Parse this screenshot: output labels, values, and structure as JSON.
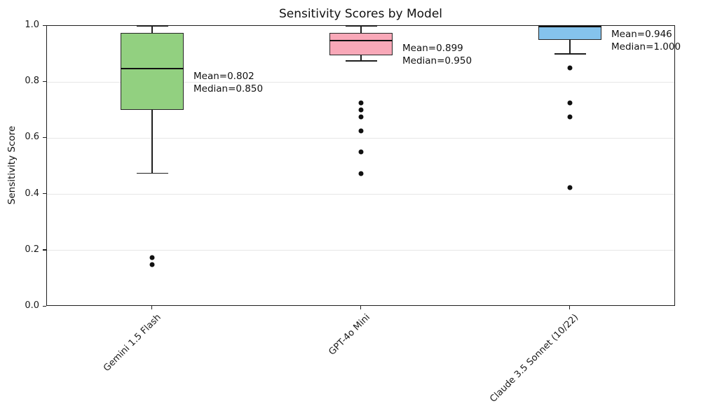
{
  "chart_data": {
    "type": "boxplot",
    "title": "Sensitivity Scores by Model",
    "xlabel": "",
    "ylabel": "Sensitivity Score",
    "ylim": [
      0.0,
      1.0
    ],
    "yticks": [
      0.0,
      0.2,
      0.4,
      0.6,
      0.8,
      1.0
    ],
    "ytick_labels": [
      "0.0",
      "0.2",
      "0.4",
      "0.6",
      "0.8",
      "1.0"
    ],
    "grid": "horizontal-only",
    "legend": "none",
    "categories": [
      "Gemini 1.5 Flash",
      "GPT-4o Mini",
      "Claude 3.5 Sonnet (10/22)"
    ],
    "series": [
      {
        "model": "Gemini 1.5 Flash",
        "box_color": "#92d080",
        "whisker_low": 0.475,
        "q1": 0.7,
        "median": 0.85,
        "q3": 0.975,
        "whisker_high": 1.0,
        "mean": 0.802,
        "outliers": [
          0.175,
          0.15
        ],
        "annotation_lines": [
          "Mean=0.802",
          "Median=0.850"
        ]
      },
      {
        "model": "GPT-4o Mini",
        "box_color": "#f9a8b8",
        "whisker_low": 0.875,
        "q1": 0.895,
        "median": 0.95,
        "q3": 0.975,
        "whisker_high": 1.0,
        "mean": 0.899,
        "outliers": [
          0.725,
          0.7,
          0.675,
          0.625,
          0.55,
          0.475
        ],
        "annotation_lines": [
          "Mean=0.899",
          "Median=0.950"
        ]
      },
      {
        "model": "Claude 3.5 Sonnet (10/22)",
        "box_color": "#85c3ec",
        "whisker_low": 0.9,
        "q1": 0.95,
        "median": 1.0,
        "q3": 1.0,
        "whisker_high": 1.0,
        "mean": 0.946,
        "outliers": [
          0.85,
          0.725,
          0.675,
          0.425
        ],
        "annotation_lines": [
          "Mean=0.946",
          "Median=1.000"
        ]
      }
    ]
  }
}
